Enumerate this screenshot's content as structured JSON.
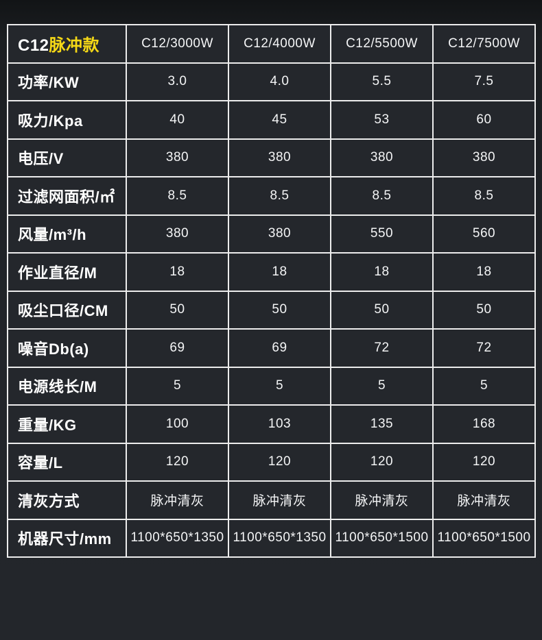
{
  "colors": {
    "page_background_top": "#121416",
    "page_background": "#23262b",
    "cell_background": "#24272c",
    "grid_border": "#ededed",
    "label_text": "#ffffff",
    "value_text": "#f4f5f6",
    "accent_yellow": "#f6d916"
  },
  "chart_data": {
    "type": "table",
    "title": "C12脉冲款",
    "title_prefix": "C12",
    "title_suffix": "脉冲款",
    "model_columns": [
      "C12/3000W",
      "C12/4000W",
      "C12/5500W",
      "C12/7500W"
    ],
    "rows": [
      {
        "label": "功率/KW",
        "values": [
          "3.0",
          "4.0",
          "5.5",
          "7.5"
        ]
      },
      {
        "label": "吸力/Kpa",
        "values": [
          "40",
          "45",
          "53",
          "60"
        ]
      },
      {
        "label": "电压/V",
        "values": [
          "380",
          "380",
          "380",
          "380"
        ]
      },
      {
        "label": "过滤网面积/㎡",
        "values": [
          "8.5",
          "8.5",
          "8.5",
          "8.5"
        ]
      },
      {
        "label": "风量/m³/h",
        "values": [
          "380",
          "380",
          "550",
          "560"
        ]
      },
      {
        "label": "作业直径/M",
        "values": [
          "18",
          "18",
          "18",
          "18"
        ]
      },
      {
        "label": "吸尘口径/CM",
        "values": [
          "50",
          "50",
          "50",
          "50"
        ]
      },
      {
        "label": "噪音Db(a)",
        "values": [
          "69",
          "69",
          "72",
          "72"
        ]
      },
      {
        "label": "电源线长/M",
        "values": [
          "5",
          "5",
          "5",
          "5"
        ]
      },
      {
        "label": "重量/KG",
        "values": [
          "100",
          "103",
          "135",
          "168"
        ]
      },
      {
        "label": "容量/L",
        "values": [
          "120",
          "120",
          "120",
          "120"
        ]
      },
      {
        "label": "清灰方式",
        "values": [
          "脉冲清灰",
          "脉冲清灰",
          "脉冲清灰",
          "脉冲清灰"
        ]
      },
      {
        "label": "机器尺寸/mm",
        "values": [
          "1100*650*1350",
          "1100*650*1350",
          "1100*650*1500",
          "1100*650*1500"
        ]
      }
    ]
  }
}
